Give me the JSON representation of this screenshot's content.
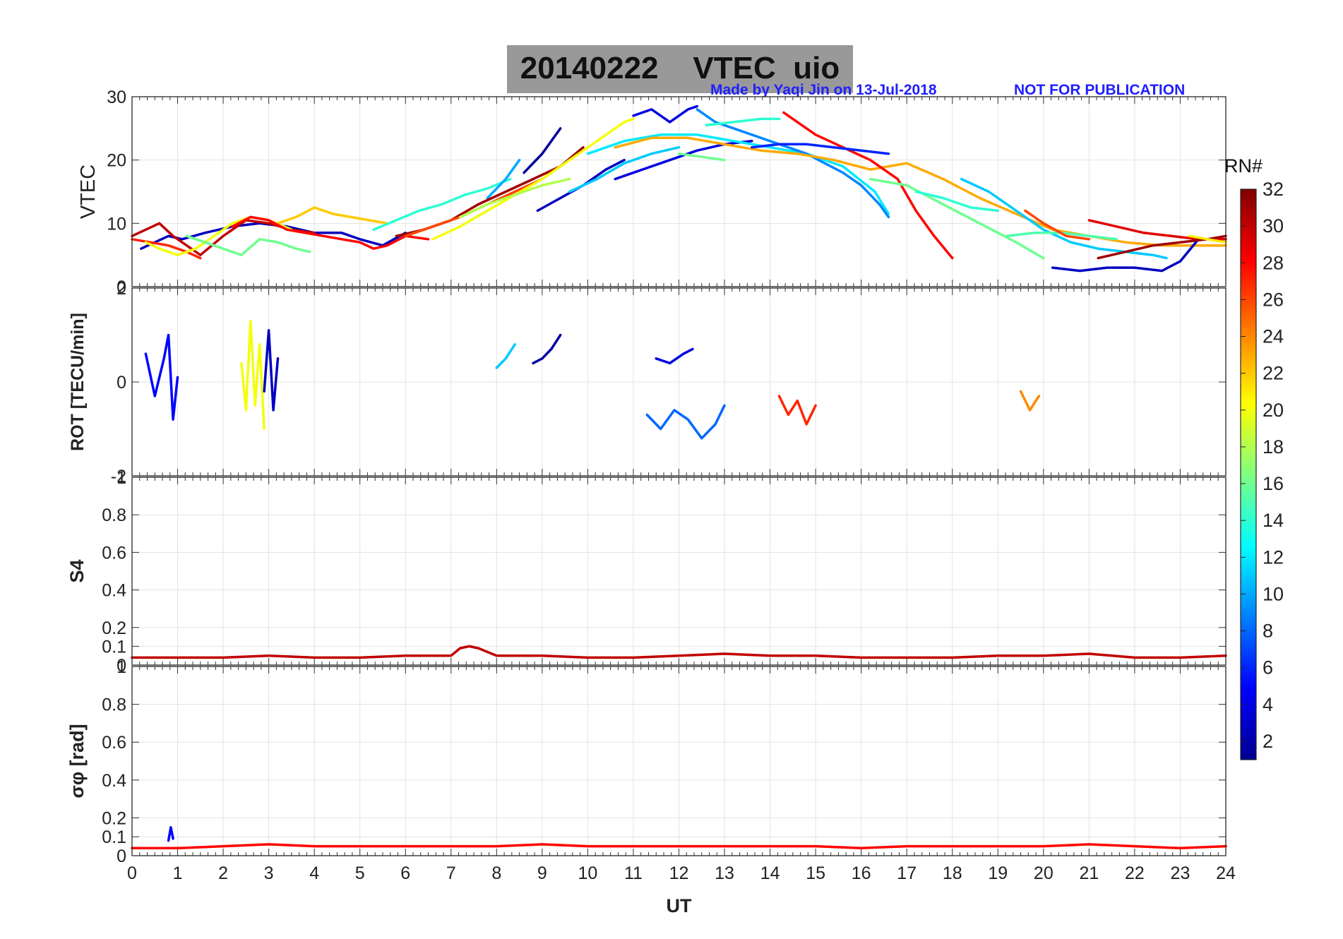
{
  "header": {
    "title": "20140222    VTEC  uio",
    "credit_left": "Made by Yaqi Jin on 13-Jul-2018",
    "credit_right": "NOT FOR PUBLICATION"
  },
  "colorbar": {
    "label": "PRN#",
    "ticks": [
      "2",
      "4",
      "6",
      "8",
      "10",
      "12",
      "14",
      "16",
      "18",
      "20",
      "22",
      "24",
      "26",
      "28",
      "30",
      "32"
    ],
    "range": [
      1,
      32
    ],
    "colormap": "jet"
  },
  "chart_data": [
    {
      "type": "line",
      "ylabel": "VTEC",
      "ylim": [
        0,
        30
      ],
      "yticks": [
        "0",
        "10",
        "20",
        "30"
      ],
      "xlim": [
        0,
        24
      ],
      "grid": true,
      "series": [
        {
          "prn": 3,
          "x": [
            0.2,
            0.5,
            0.8,
            1.1,
            1.6,
            2.2,
            2.8,
            3.4,
            4.0,
            4.6,
            5.0,
            5.5,
            6.0
          ],
          "y": [
            6,
            7,
            8,
            7.5,
            8.5,
            9.5,
            10,
            9.5,
            8.5,
            8.5,
            7.5,
            6.5,
            8.5
          ]
        },
        {
          "prn": 30,
          "x": [
            0,
            0.3,
            0.6,
            0.9,
            1.2,
            1.5,
            2.0,
            2.5,
            3.0,
            3.5,
            4.0
          ],
          "y": [
            8,
            9,
            10,
            8,
            6.5,
            5,
            8,
            10.5,
            10,
            9,
            8.5
          ]
        },
        {
          "prn": 27,
          "x": [
            0,
            0.4,
            0.8,
            1.2,
            1.5
          ],
          "y": [
            7.5,
            7,
            6.5,
            5.5,
            4.5
          ]
        },
        {
          "prn": 20,
          "x": [
            0.3,
            0.6,
            1.0,
            1.4,
            1.8,
            2.2,
            2.6,
            3.0,
            3.5
          ],
          "y": [
            7,
            6,
            5,
            6,
            8,
            10,
            11,
            10.5,
            9
          ]
        },
        {
          "prn": 16,
          "x": [
            1.2,
            1.6,
            2.0,
            2.4,
            2.8,
            3.2,
            3.6,
            3.9
          ],
          "y": [
            8,
            7,
            6,
            5,
            7.5,
            7,
            6,
            5.5
          ]
        },
        {
          "prn": 22,
          "x": [
            3.2,
            3.6,
            4.0,
            4.4,
            4.8,
            5.2,
            5.6
          ],
          "y": [
            10,
            11,
            12.5,
            11.5,
            11,
            10.5,
            10
          ]
        },
        {
          "prn": 28,
          "x": [
            2.2,
            2.6,
            3.0,
            3.4,
            3.8,
            4.2,
            4.6,
            5.0,
            5.3,
            5.6,
            6.0,
            6.5
          ],
          "y": [
            9.5,
            11,
            10.5,
            9,
            8.5,
            8,
            7.5,
            7,
            6,
            6.5,
            8,
            7.5
          ]
        },
        {
          "prn": 14,
          "x": [
            5.3,
            5.8,
            6.3,
            6.8,
            7.3,
            7.8,
            8.3
          ],
          "y": [
            9,
            10.5,
            12,
            13,
            14.5,
            15.5,
            17
          ]
        },
        {
          "prn": 10,
          "x": [
            7.8,
            8.2,
            8.5
          ],
          "y": [
            14,
            17,
            20
          ]
        },
        {
          "prn": 31,
          "x": [
            5.8,
            6.4,
            7.0,
            7.6,
            8.2,
            8.8,
            9.4,
            9.9
          ],
          "y": [
            8,
            9,
            10.5,
            13,
            15,
            17,
            19,
            22
          ]
        },
        {
          "prn": 26,
          "x": [
            6.0,
            6.6,
            7.2,
            7.8,
            8.4,
            9.0,
            9.4
          ],
          "y": [
            8,
            9.5,
            11,
            13,
            15,
            17,
            19
          ]
        },
        {
          "prn": 20,
          "x": [
            6.6,
            7.2,
            7.8,
            8.4,
            9.0,
            9.6,
            10.2,
            10.8,
            11.0
          ],
          "y": [
            7.5,
            9.5,
            12,
            14.5,
            17,
            20,
            23,
            26,
            26.5
          ]
        },
        {
          "prn": 18,
          "x": [
            7.2,
            7.8,
            8.4,
            9.0,
            9.6
          ],
          "y": [
            11,
            13,
            14.5,
            16,
            17
          ]
        },
        {
          "prn": 2,
          "x": [
            8.6,
            9.0,
            9.4
          ],
          "y": [
            18,
            21,
            25
          ]
        },
        {
          "prn": 3,
          "x": [
            8.9,
            9.4,
            9.9,
            10.4,
            10.8
          ],
          "y": [
            12,
            14,
            16,
            18.5,
            20
          ]
        },
        {
          "prn": 11,
          "x": [
            9.6,
            10.2,
            10.8,
            11.4,
            12.0
          ],
          "y": [
            15,
            17,
            19.5,
            21,
            22
          ]
        },
        {
          "prn": 4,
          "x": [
            10.6,
            11.2,
            11.8,
            12.4,
            13.0,
            13.6
          ],
          "y": [
            17,
            18.5,
            20,
            21.5,
            22.5,
            23
          ]
        },
        {
          "prn": 4,
          "x": [
            11.0,
            11.4,
            11.8,
            12.2,
            12.4
          ],
          "y": [
            27,
            28,
            26,
            28,
            28.5
          ]
        },
        {
          "prn": 12,
          "x": [
            10.0,
            10.8,
            11.6,
            12.4,
            13.2,
            14.0,
            14.8,
            15.6,
            16.3,
            16.6
          ],
          "y": [
            21,
            23,
            24,
            24,
            23,
            22,
            21,
            19,
            15,
            11.5
          ]
        },
        {
          "prn": 9,
          "x": [
            12.4,
            12.8,
            13.2,
            13.6,
            14.0,
            14.4,
            14.8,
            15.2,
            15.6,
            16.0,
            16.4,
            16.6
          ],
          "y": [
            28,
            26,
            25,
            24,
            23,
            22,
            21,
            19.5,
            18,
            16,
            13,
            11
          ]
        },
        {
          "prn": 23,
          "x": [
            10.6,
            11.4,
            12.2,
            13.0,
            13.8,
            14.6,
            15.4,
            16.2,
            17.0,
            17.8,
            18.6,
            19.4,
            20.2,
            21.0,
            21.8,
            22.6,
            23.4,
            24.0
          ],
          "y": [
            22,
            23.5,
            23.5,
            22.5,
            21.5,
            21,
            20,
            18.5,
            19.5,
            17,
            14,
            11.5,
            9,
            8,
            7,
            6.5,
            6.5,
            6.5
          ]
        },
        {
          "prn": 14,
          "x": [
            12.6,
            13.2,
            13.8,
            14.2
          ],
          "y": [
            25.5,
            26,
            26.5,
            26.5
          ]
        },
        {
          "prn": 28,
          "x": [
            14.3,
            14.6,
            15.0,
            15.6,
            16.2,
            16.8,
            17.2,
            17.6,
            18.0
          ],
          "y": [
            27.5,
            26,
            24,
            22,
            20,
            17,
            12,
            8,
            4.5
          ]
        },
        {
          "prn": 6,
          "x": [
            13.6,
            14.2,
            14.8,
            15.4,
            16.0,
            16.6
          ],
          "y": [
            22,
            22.5,
            22.5,
            22,
            21.5,
            21
          ]
        },
        {
          "prn": 16,
          "x": [
            12.0,
            12.5,
            13.0
          ],
          "y": [
            21,
            20.5,
            20
          ]
        },
        {
          "prn": 16,
          "x": [
            16.2,
            17.0,
            17.8,
            18.6,
            19.4,
            20.0
          ],
          "y": [
            17,
            16,
            13,
            10,
            7,
            4.5
          ]
        },
        {
          "prn": 14,
          "x": [
            17.2,
            17.8,
            18.4,
            19.0
          ],
          "y": [
            15,
            14,
            12.5,
            12
          ]
        },
        {
          "prn": 11,
          "x": [
            18.2,
            18.8,
            19.4,
            20.0,
            20.6,
            21.2,
            21.8,
            22.4,
            22.7
          ],
          "y": [
            17,
            15,
            12,
            9,
            7,
            6,
            5.5,
            5,
            4.5
          ]
        },
        {
          "prn": 15,
          "x": [
            19.2,
            19.8,
            20.4,
            21.0,
            21.6
          ],
          "y": [
            8,
            8.5,
            8.5,
            8,
            7.5
          ]
        },
        {
          "prn": 26,
          "x": [
            19.6,
            20.0,
            20.5,
            21.0
          ],
          "y": [
            12,
            10,
            8,
            7.5
          ]
        },
        {
          "prn": 29,
          "x": [
            21.0,
            21.6,
            22.2,
            22.8,
            23.4,
            24.0
          ],
          "y": [
            10.5,
            9.5,
            8.5,
            8,
            7.5,
            7.5
          ]
        },
        {
          "prn": 3,
          "x": [
            20.2,
            20.8,
            21.4,
            22.0,
            22.6,
            23.0,
            23.4
          ],
          "y": [
            3,
            2.5,
            3,
            3,
            2.5,
            4,
            7.5
          ]
        },
        {
          "prn": 31,
          "x": [
            21.2,
            21.8,
            22.4,
            23.0,
            23.6,
            24.0
          ],
          "y": [
            4.5,
            5.5,
            6.5,
            7,
            7.5,
            8
          ]
        },
        {
          "prn": 21,
          "x": [
            23.2,
            23.6,
            24.0
          ],
          "y": [
            8,
            7.5,
            7
          ]
        }
      ]
    },
    {
      "type": "line",
      "ylabel": "ROT [TECU/min]",
      "ylim": [
        -2,
        2
      ],
      "yticks": [
        "-2",
        "0",
        "2"
      ],
      "xlim": [
        0,
        24
      ],
      "grid": true,
      "series": [
        {
          "prn": 5,
          "x": [
            0.3,
            0.5,
            0.7,
            0.8,
            0.9,
            1.0
          ],
          "y": [
            0.6,
            -0.3,
            0.5,
            1,
            -0.8,
            0.1
          ]
        },
        {
          "prn": 20,
          "x": [
            2.4,
            2.5,
            2.6,
            2.7,
            2.8,
            2.9
          ],
          "y": [
            0.4,
            -0.6,
            1.3,
            -0.5,
            0.8,
            -1
          ]
        },
        {
          "prn": 3,
          "x": [
            2.9,
            3.0,
            3.1,
            3.2
          ],
          "y": [
            -0.2,
            1.1,
            -0.6,
            0.5
          ]
        },
        {
          "prn": 11,
          "x": [
            8.0,
            8.2,
            8.4
          ],
          "y": [
            0.3,
            0.5,
            0.8
          ]
        },
        {
          "prn": 2,
          "x": [
            8.8,
            9.0,
            9.2,
            9.4
          ],
          "y": [
            0.4,
            0.5,
            0.7,
            1
          ]
        },
        {
          "prn": 8,
          "x": [
            11.3,
            11.6,
            11.9,
            12.2,
            12.5,
            12.8,
            13.0
          ],
          "y": [
            -0.7,
            -1,
            -0.6,
            -0.8,
            -1.2,
            -0.9,
            -0.5
          ]
        },
        {
          "prn": 4,
          "x": [
            11.5,
            11.8,
            12.1,
            12.3
          ],
          "y": [
            0.5,
            0.4,
            0.6,
            0.7
          ]
        },
        {
          "prn": 27,
          "x": [
            14.2,
            14.4,
            14.6,
            14.8,
            15.0
          ],
          "y": [
            -0.3,
            -0.7,
            -0.4,
            -0.9,
            -0.5
          ]
        },
        {
          "prn": 24,
          "x": [
            19.5,
            19.7,
            19.9
          ],
          "y": [
            -0.2,
            -0.6,
            -0.3
          ]
        }
      ]
    },
    {
      "type": "line",
      "ylabel": "S4",
      "ylim": [
        0,
        1
      ],
      "yticks": [
        "0",
        "0.1",
        "0.2",
        "0.4",
        "0.6",
        "0.8",
        "1"
      ],
      "xlim": [
        0,
        24
      ],
      "grid": true,
      "series": [
        {
          "prn": 30,
          "x": [
            0,
            1,
            2,
            3,
            4,
            5,
            6,
            7,
            7.2,
            7.4,
            7.6,
            8,
            9,
            10,
            11,
            12,
            13,
            14,
            15,
            16,
            17,
            18,
            19,
            20,
            21,
            22,
            23,
            24
          ],
          "y": [
            0.04,
            0.04,
            0.04,
            0.05,
            0.04,
            0.04,
            0.05,
            0.05,
            0.09,
            0.1,
            0.09,
            0.05,
            0.05,
            0.04,
            0.04,
            0.05,
            0.06,
            0.05,
            0.05,
            0.04,
            0.04,
            0.04,
            0.05,
            0.05,
            0.06,
            0.04,
            0.04,
            0.05
          ]
        }
      ]
    },
    {
      "type": "line",
      "ylabel": "σφ [rad]",
      "xlabel": "UT",
      "ylim": [
        0,
        1
      ],
      "yticks": [
        "0",
        "0.1",
        "0.2",
        "0.4",
        "0.6",
        "0.8",
        "1"
      ],
      "xlim": [
        0,
        24
      ],
      "xticks": [
        "0",
        "1",
        "2",
        "3",
        "4",
        "5",
        "6",
        "7",
        "8",
        "9",
        "10",
        "11",
        "12",
        "13",
        "14",
        "15",
        "16",
        "17",
        "18",
        "19",
        "20",
        "21",
        "22",
        "23",
        "24"
      ],
      "grid": true,
      "series": [
        {
          "prn": 5,
          "x": [
            0.8,
            0.85,
            0.9
          ],
          "y": [
            0.08,
            0.15,
            0.09
          ]
        },
        {
          "prn": 28,
          "x": [
            0,
            1,
            2,
            3,
            4,
            5,
            6,
            7,
            8,
            9,
            10,
            11,
            12,
            13,
            14,
            15,
            16,
            17,
            18,
            19,
            20,
            21,
            22,
            23,
            24
          ],
          "y": [
            0.04,
            0.04,
            0.05,
            0.06,
            0.05,
            0.05,
            0.05,
            0.05,
            0.05,
            0.06,
            0.05,
            0.05,
            0.05,
            0.05,
            0.05,
            0.05,
            0.04,
            0.05,
            0.05,
            0.05,
            0.05,
            0.06,
            0.05,
            0.04,
            0.05
          ]
        }
      ]
    }
  ]
}
